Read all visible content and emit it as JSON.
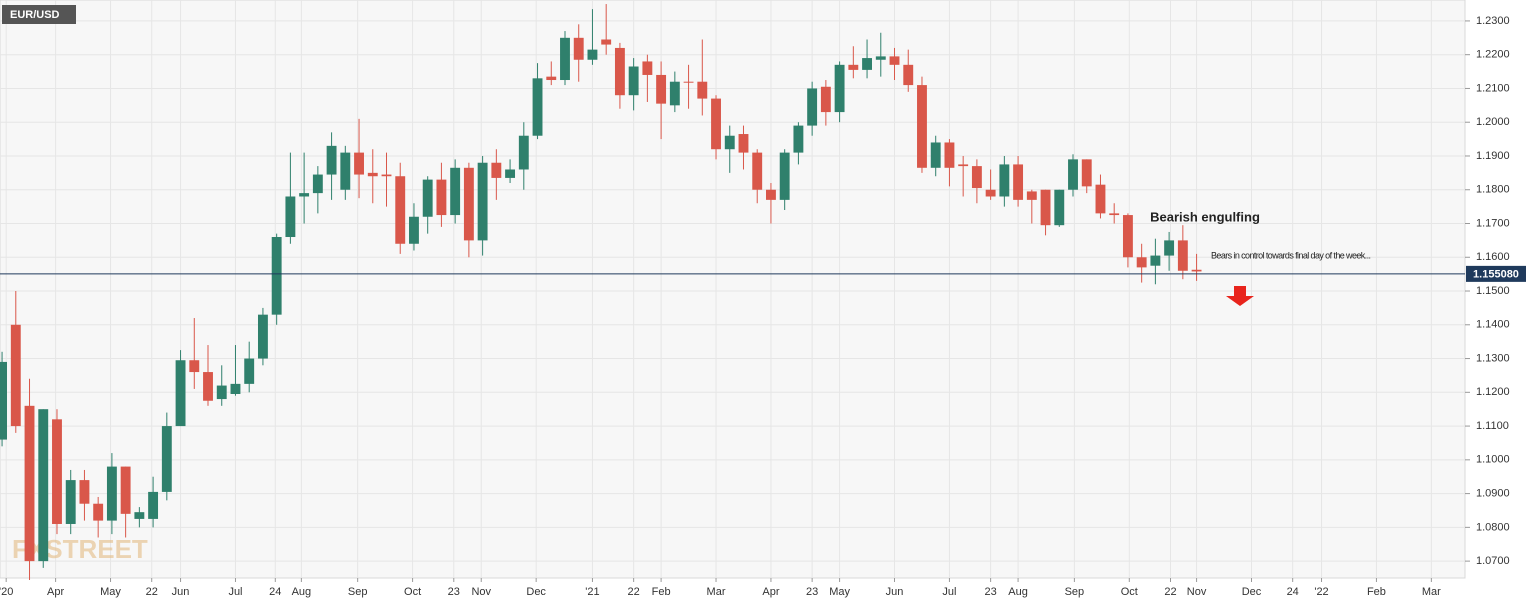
{
  "chart_data": {
    "type": "candlestick",
    "symbol": "EUR/USD",
    "watermark": "FXSTREET",
    "up_color": "#2f806c",
    "down_color": "#d9574a",
    "open": [
      1.106,
      1.14,
      1.116,
      1.07,
      1.112,
      1.081,
      1.094,
      1.087,
      1.082,
      1.098,
      1.0825,
      1.0825,
      1.0905,
      1.11,
      1.1295,
      1.126,
      1.118,
      1.1195,
      1.1225,
      1.13,
      1.143,
      1.166,
      1.178,
      1.179,
      1.1845,
      1.18,
      1.191,
      1.185,
      1.1845,
      1.184,
      1.164,
      1.172,
      1.183,
      1.1725,
      1.1865,
      1.165,
      1.188,
      1.1835,
      1.186,
      1.196,
      1.2135,
      1.2125,
      1.225,
      1.2185,
      1.2245,
      1.222,
      1.208,
      1.218,
      1.214,
      1.205,
      1.212,
      1.212,
      1.207,
      1.192,
      1.1965,
      1.191,
      1.18,
      1.177,
      1.191,
      1.199,
      1.2105,
      1.203,
      1.217,
      1.2155,
      1.2185,
      1.2195,
      1.217,
      1.211,
      1.1865,
      1.194,
      1.1875,
      1.187,
      1.18,
      1.178,
      1.1875,
      1.1795,
      1.18,
      1.1695,
      1.18,
      1.189,
      1.1815,
      1.173,
      1.1725,
      1.16,
      1.1575,
      1.1605,
      1.165,
      1.1563
    ],
    "high": [
      1.132,
      1.15,
      1.124,
      1.115,
      1.115,
      1.097,
      1.097,
      1.089,
      1.102,
      1.098,
      1.086,
      1.095,
      1.114,
      1.1325,
      1.142,
      1.134,
      1.128,
      1.134,
      1.135,
      1.145,
      1.167,
      1.191,
      1.191,
      1.187,
      1.197,
      1.193,
      1.201,
      1.192,
      1.191,
      1.188,
      1.176,
      1.184,
      1.188,
      1.189,
      1.188,
      1.19,
      1.192,
      1.189,
      1.2,
      1.2175,
      1.218,
      1.227,
      1.229,
      1.2335,
      1.235,
      1.2235,
      1.219,
      1.22,
      1.218,
      1.215,
      1.217,
      1.2245,
      1.208,
      1.199,
      1.199,
      1.192,
      1.182,
      1.192,
      1.2,
      1.212,
      1.2125,
      1.218,
      1.2225,
      1.2245,
      1.2265,
      1.222,
      1.2215,
      1.2135,
      1.196,
      1.195,
      1.19,
      1.189,
      1.186,
      1.19,
      1.19,
      1.18,
      1.18,
      1.18,
      1.1905,
      1.189,
      1.1845,
      1.176,
      1.173,
      1.164,
      1.1655,
      1.1675,
      1.1695,
      1.161
    ],
    "low": [
      1.104,
      1.108,
      1.0644,
      1.068,
      1.078,
      1.078,
      1.082,
      1.077,
      1.078,
      1.077,
      1.08,
      1.08,
      1.088,
      1.11,
      1.121,
      1.116,
      1.116,
      1.119,
      1.12,
      1.128,
      1.14,
      1.164,
      1.17,
      1.173,
      1.177,
      1.177,
      1.1775,
      1.176,
      1.175,
      1.161,
      1.162,
      1.167,
      1.169,
      1.17,
      1.16,
      1.1605,
      1.177,
      1.182,
      1.18,
      1.195,
      1.211,
      1.211,
      1.212,
      1.217,
      1.22,
      1.204,
      1.2035,
      1.206,
      1.195,
      1.203,
      1.204,
      1.202,
      1.189,
      1.185,
      1.186,
      1.176,
      1.17,
      1.174,
      1.1875,
      1.196,
      1.199,
      1.2,
      1.213,
      1.213,
      1.2135,
      1.2125,
      1.209,
      1.185,
      1.184,
      1.181,
      1.178,
      1.176,
      1.177,
      1.175,
      1.175,
      1.17,
      1.1665,
      1.169,
      1.178,
      1.179,
      1.1715,
      1.17,
      1.157,
      1.1525,
      1.152,
      1.156,
      1.1535,
      1.153
    ],
    "close": [
      1.129,
      1.11,
      1.07,
      1.115,
      1.081,
      1.094,
      1.087,
      1.082,
      1.098,
      1.084,
      1.0845,
      1.0905,
      1.11,
      1.1295,
      1.126,
      1.1175,
      1.122,
      1.1225,
      1.13,
      1.143,
      1.166,
      1.178,
      1.179,
      1.1845,
      1.193,
      1.191,
      1.1845,
      1.184,
      1.184,
      1.164,
      1.172,
      1.183,
      1.1725,
      1.1865,
      1.165,
      1.188,
      1.1835,
      1.186,
      1.196,
      1.213,
      1.2125,
      1.225,
      1.2185,
      1.2215,
      1.223,
      1.208,
      1.2165,
      1.214,
      1.2055,
      1.212,
      1.2118,
      1.207,
      1.192,
      1.196,
      1.191,
      1.18,
      1.177,
      1.191,
      1.199,
      1.21,
      1.203,
      1.217,
      1.2155,
      1.219,
      1.2195,
      1.217,
      1.211,
      1.1865,
      1.194,
      1.1865,
      1.187,
      1.1805,
      1.178,
      1.1875,
      1.177,
      1.177,
      1.1695,
      1.18,
      1.189,
      1.181,
      1.173,
      1.1725,
      1.16,
      1.157,
      1.1605,
      1.165,
      1.156,
      1.1558
    ],
    "xlim": [
      -0.15,
      106.55
    ],
    "xticks": [
      {
        "value": 0.3,
        "label": "'20"
      },
      {
        "value": 3.9,
        "label": "Apr"
      },
      {
        "value": 7.9,
        "label": "May"
      },
      {
        "value": 10.9,
        "label": "22"
      },
      {
        "value": 13.0,
        "label": "Jun"
      },
      {
        "value": 17.0,
        "label": "Jul"
      },
      {
        "value": 19.9,
        "label": "24"
      },
      {
        "value": 21.8,
        "label": "Aug"
      },
      {
        "value": 25.9,
        "label": "Sep"
      },
      {
        "value": 29.9,
        "label": "Oct"
      },
      {
        "value": 32.9,
        "label": "23"
      },
      {
        "value": 34.9,
        "label": "Nov"
      },
      {
        "value": 38.9,
        "label": "Dec"
      },
      {
        "value": 43.0,
        "label": "'21"
      },
      {
        "value": 46.0,
        "label": "22"
      },
      {
        "value": 48.0,
        "label": "Feb"
      },
      {
        "value": 52.0,
        "label": "Mar"
      },
      {
        "value": 56.0,
        "label": "Apr"
      },
      {
        "value": 59.0,
        "label": "23"
      },
      {
        "value": 61.0,
        "label": "May"
      },
      {
        "value": 65.0,
        "label": "Jun"
      },
      {
        "value": 69.0,
        "label": "Jul"
      },
      {
        "value": 72.0,
        "label": "23"
      },
      {
        "value": 74.0,
        "label": "Aug"
      },
      {
        "value": 78.1,
        "label": "Sep"
      },
      {
        "value": 82.1,
        "label": "Oct"
      },
      {
        "value": 85.1,
        "label": "22"
      },
      {
        "value": 87.0,
        "label": "Nov"
      },
      {
        "value": 91.0,
        "label": "Dec"
      },
      {
        "value": 94.0,
        "label": "24"
      },
      {
        "value": 96.1,
        "label": "'22"
      },
      {
        "value": 100.1,
        "label": "Feb"
      },
      {
        "value": 104.1,
        "label": "Mar"
      }
    ],
    "ylim": [
      1.065,
      1.2362
    ],
    "yticks": [
      {
        "value": 1.07,
        "label": "1.0700"
      },
      {
        "value": 1.08,
        "label": "1.0800"
      },
      {
        "value": 1.09,
        "label": "1.0900"
      },
      {
        "value": 1.1,
        "label": "1.1000"
      },
      {
        "value": 1.11,
        "label": "1.1100"
      },
      {
        "value": 1.12,
        "label": "1.1200"
      },
      {
        "value": 1.13,
        "label": "1.1300"
      },
      {
        "value": 1.14,
        "label": "1.1400"
      },
      {
        "value": 1.15,
        "label": "1.1500"
      },
      {
        "value": 1.16,
        "label": "1.1600"
      },
      {
        "value": 1.17,
        "label": "1.1700"
      },
      {
        "value": 1.18,
        "label": "1.1800"
      },
      {
        "value": 1.19,
        "label": "1.1900"
      },
      {
        "value": 1.2,
        "label": "1.2000"
      },
      {
        "value": 1.21,
        "label": "1.2100"
      },
      {
        "value": 1.22,
        "label": "1.2200"
      },
      {
        "value": 1.23,
        "label": "1.2300"
      }
    ],
    "grid": true,
    "price_line": {
      "value": 1.15508,
      "label": "1.155080",
      "color": "#1f3a5c"
    },
    "annotations": [
      "Bearish engulfing",
      "Bears in control  towards final day of the week..."
    ]
  }
}
